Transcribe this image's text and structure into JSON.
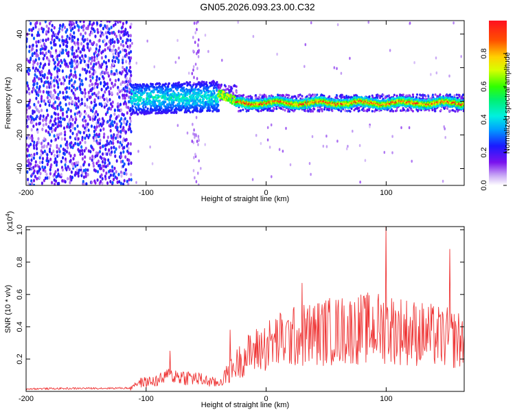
{
  "title": "GN05.2026.093.23.00.C32",
  "chart_data": [
    {
      "type": "heatmap",
      "xlabel": "Height of straight line (km)",
      "ylabel": "Frequency (Hz)",
      "xlim": [
        -200,
        165
      ],
      "ylim": [
        -50,
        48
      ],
      "xticks": [
        -200,
        -100,
        0,
        100
      ],
      "yticks": [
        -40,
        -20,
        0,
        20,
        40
      ],
      "colorbar": {
        "label": "Normalized spectral amplitude",
        "range": [
          0,
          1
        ],
        "ticks": [
          0.0,
          0.2,
          0.4,
          0.6,
          0.8
        ]
      },
      "features": [
        {
          "name": "broadband noise",
          "x_range": [
            -200,
            -113
          ],
          "freq_range": [
            -50,
            48
          ],
          "amplitude": [
            0.05,
            0.3
          ]
        },
        {
          "name": "onset cluster",
          "x_range": [
            -113,
            -40
          ],
          "freq_range": [
            -8,
            10
          ],
          "amplitude": [
            0.2,
            0.5
          ]
        },
        {
          "name": "transition",
          "x_range": [
            -40,
            -25
          ],
          "freq_center": 5,
          "amplitude": [
            0.5,
            0.75
          ]
        },
        {
          "name": "steady narrowband line",
          "x_range": [
            -25,
            165
          ],
          "freq_center": -1,
          "amplitude": [
            0.7,
            1.0
          ]
        }
      ]
    },
    {
      "type": "line",
      "xlabel": "Height of straight line (km)",
      "ylabel": "SNR (10 * v/v)",
      "scale_label": "(x10",
      "scale_exp": "4",
      "scale_close": ")",
      "xlim": [
        -200,
        165
      ],
      "ylim": [
        0,
        1.02
      ],
      "xticks": [
        -200,
        -100,
        0,
        100
      ],
      "yticks": [
        0.2,
        0.4,
        0.6,
        0.8,
        1.0
      ],
      "color": "#ee3333",
      "series": [
        {
          "name": "SNR",
          "x_range": [
            -200,
            165
          ],
          "points": 700,
          "envelope": [
            [
              -200,
              0.01
            ],
            [
              -113,
              0.015
            ],
            [
              -110,
              0.06
            ],
            [
              -90,
              0.08
            ],
            [
              -80,
              0.12
            ],
            [
              -60,
              0.1
            ],
            [
              -40,
              0.06
            ],
            [
              -30,
              0.15
            ],
            [
              -20,
              0.25
            ],
            [
              -10,
              0.3
            ],
            [
              10,
              0.38
            ],
            [
              30,
              0.42
            ],
            [
              50,
              0.45
            ],
            [
              80,
              0.47
            ],
            [
              100,
              0.48
            ],
            [
              130,
              0.43
            ],
            [
              165,
              0.38
            ]
          ],
          "peaks": [
            [
              -80,
              0.25
            ],
            [
              -30,
              0.38
            ],
            [
              30,
              0.67
            ],
            [
              100,
              1.02
            ],
            [
              153,
              0.88
            ]
          ]
        }
      ]
    }
  ]
}
